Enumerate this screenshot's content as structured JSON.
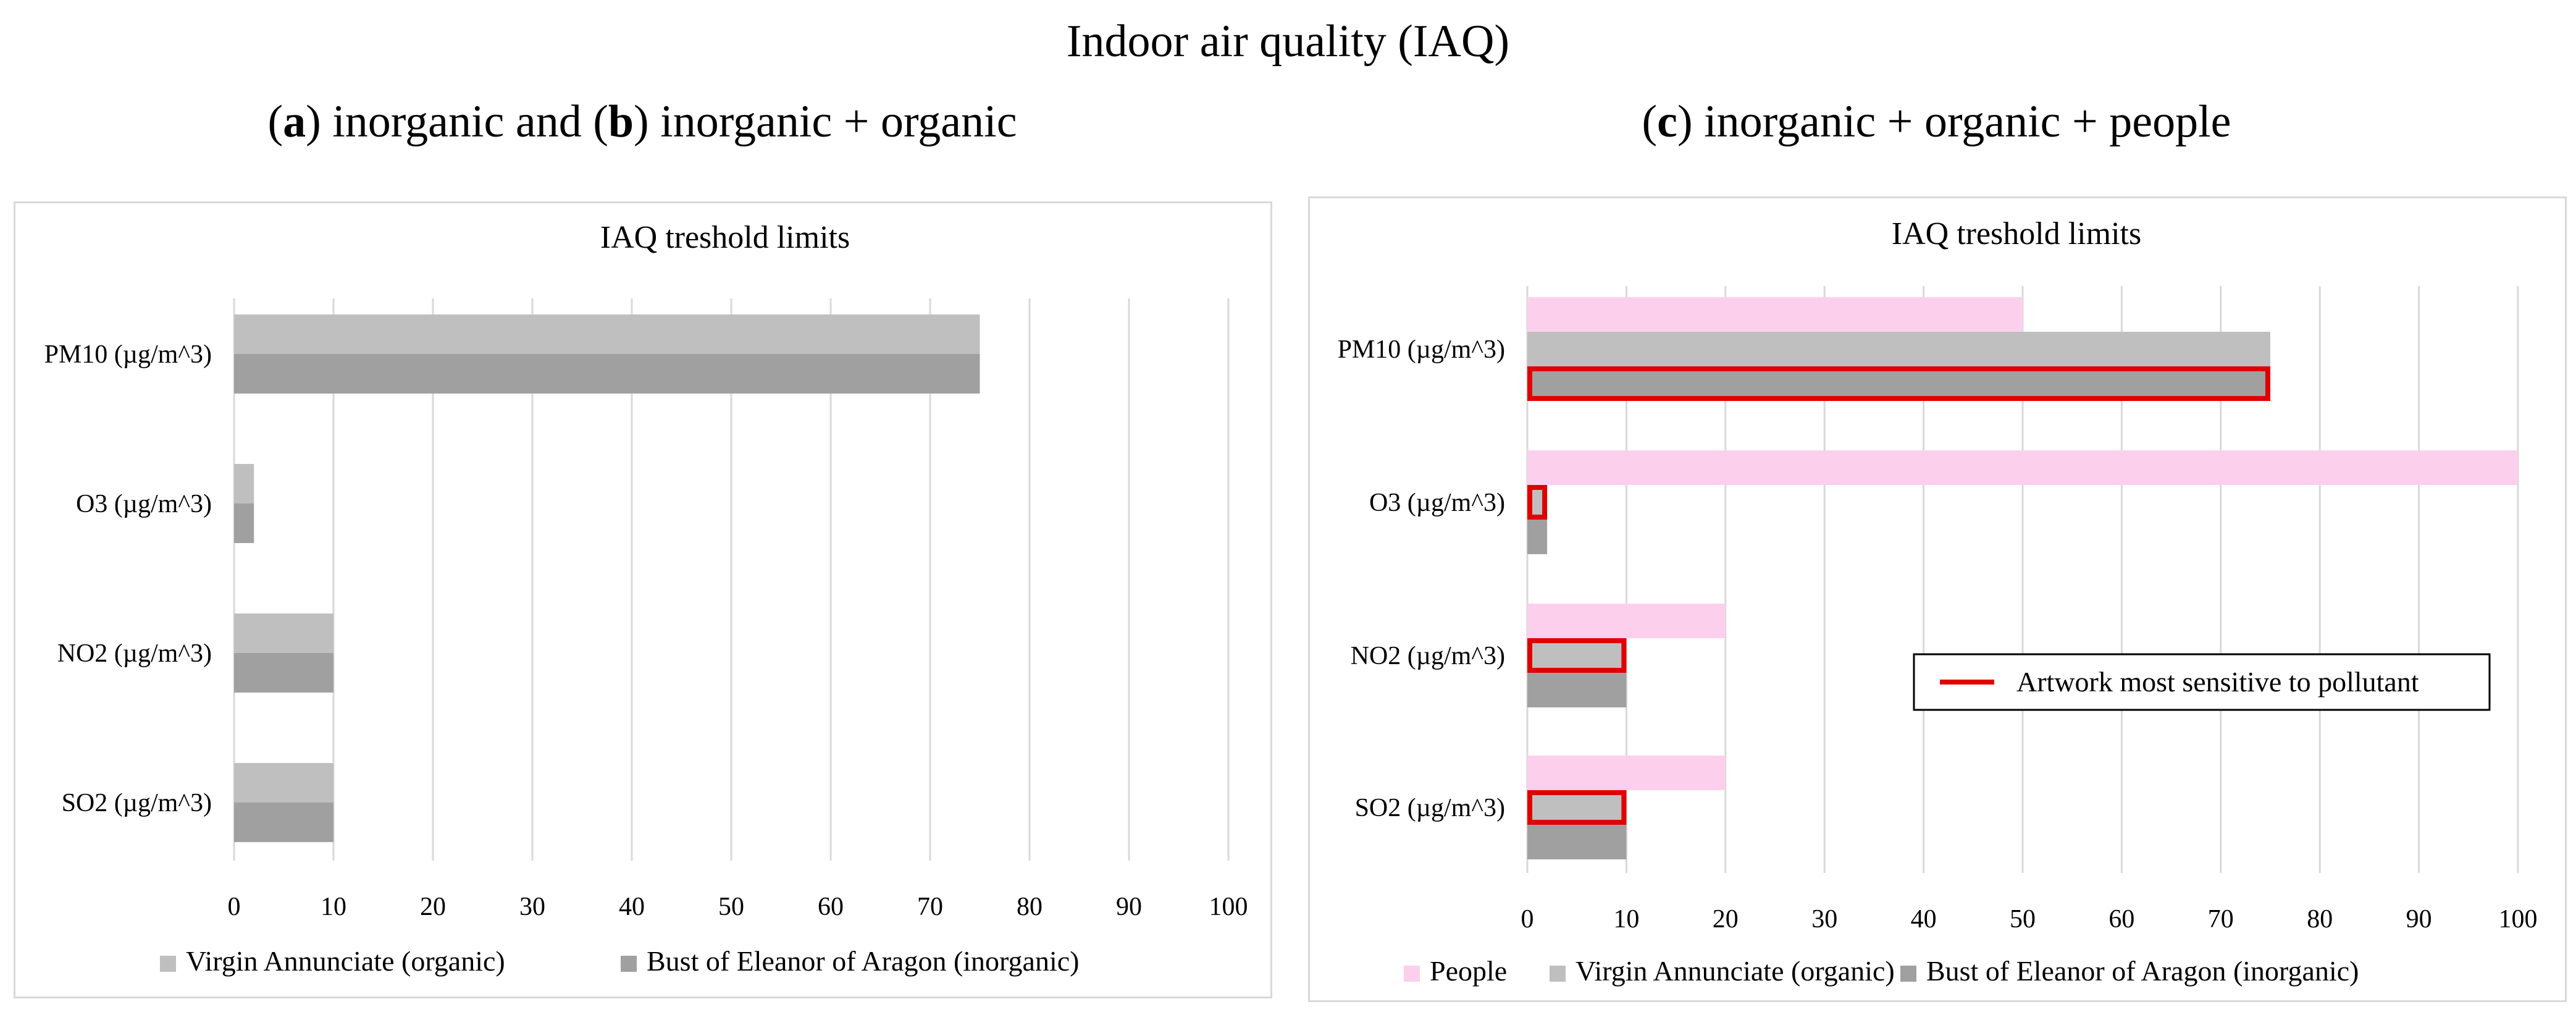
{
  "header": {
    "title": "Indoor air quality (IAQ)",
    "subtitle_left": {
      "open_a": "(",
      "letter_a": "a",
      "mid_a": ") inorganic and (",
      "letter_b": "b",
      "rest": ") inorganic + organic"
    },
    "subtitle_right": {
      "open_c": "(",
      "letter_c": "c",
      "rest": ") inorganic + organic + people"
    }
  },
  "colors": {
    "people": "#fcd0ec",
    "virgin": "#bfbfbf",
    "bust": "#a0a0a0",
    "highlight": "#e00000",
    "grid": "#d9d9d9"
  },
  "chart_data": [
    {
      "type": "bar",
      "orientation": "horizontal",
      "title": "IAQ treshold limits",
      "categories": [
        "PM10 (µg/m^3)",
        "O3 (µg/m^3)",
        "NO2 (µg/m^3)",
        "SO2 (µg/m^3)"
      ],
      "series": [
        {
          "name": "Virgin Annunciate (organic)",
          "color_key": "virgin",
          "values": [
            75,
            2,
            10,
            10
          ]
        },
        {
          "name": "Bust of Eleanor of Aragon (inorganic)",
          "color_key": "bust",
          "values": [
            75,
            2,
            10,
            10
          ]
        }
      ],
      "xlim": [
        0,
        100
      ],
      "xticks": [
        "0",
        "10",
        "20",
        "30",
        "40",
        "50",
        "60",
        "70",
        "80",
        "90",
        "100"
      ],
      "grid": true,
      "legend": "bottom"
    },
    {
      "type": "bar",
      "orientation": "horizontal",
      "title": "IAQ treshold limits",
      "categories": [
        "PM10 (µg/m^3)",
        "O3 (µg/m^3)",
        "NO2 (µg/m^3)",
        "SO2 (µg/m^3)"
      ],
      "series": [
        {
          "name": "People",
          "color_key": "people",
          "values": [
            50,
            100,
            20,
            20
          ]
        },
        {
          "name": "Virgin Annunciate (organic)",
          "color_key": "virgin",
          "values": [
            75,
            2,
            10,
            10
          ]
        },
        {
          "name": "Bust of Eleanor of Aragon (inorganic)",
          "color_key": "bust",
          "values": [
            75,
            2,
            10,
            10
          ]
        }
      ],
      "highlighted": [
        {
          "category": "PM10 (µg/m^3)",
          "series": "Bust of Eleanor of Aragon (inorganic)"
        },
        {
          "category": "O3 (µg/m^3)",
          "series": "Virgin Annunciate (organic)"
        },
        {
          "category": "NO2 (µg/m^3)",
          "series": "Virgin Annunciate (organic)"
        },
        {
          "category": "SO2 (µg/m^3)",
          "series": "Virgin Annunciate (organic)"
        }
      ],
      "callout": "Artwork most sensitive to pollutant",
      "xlim": [
        0,
        100
      ],
      "xticks": [
        "0",
        "10",
        "20",
        "30",
        "40",
        "50",
        "60",
        "70",
        "80",
        "90",
        "100"
      ],
      "grid": true,
      "legend": "bottom"
    }
  ]
}
